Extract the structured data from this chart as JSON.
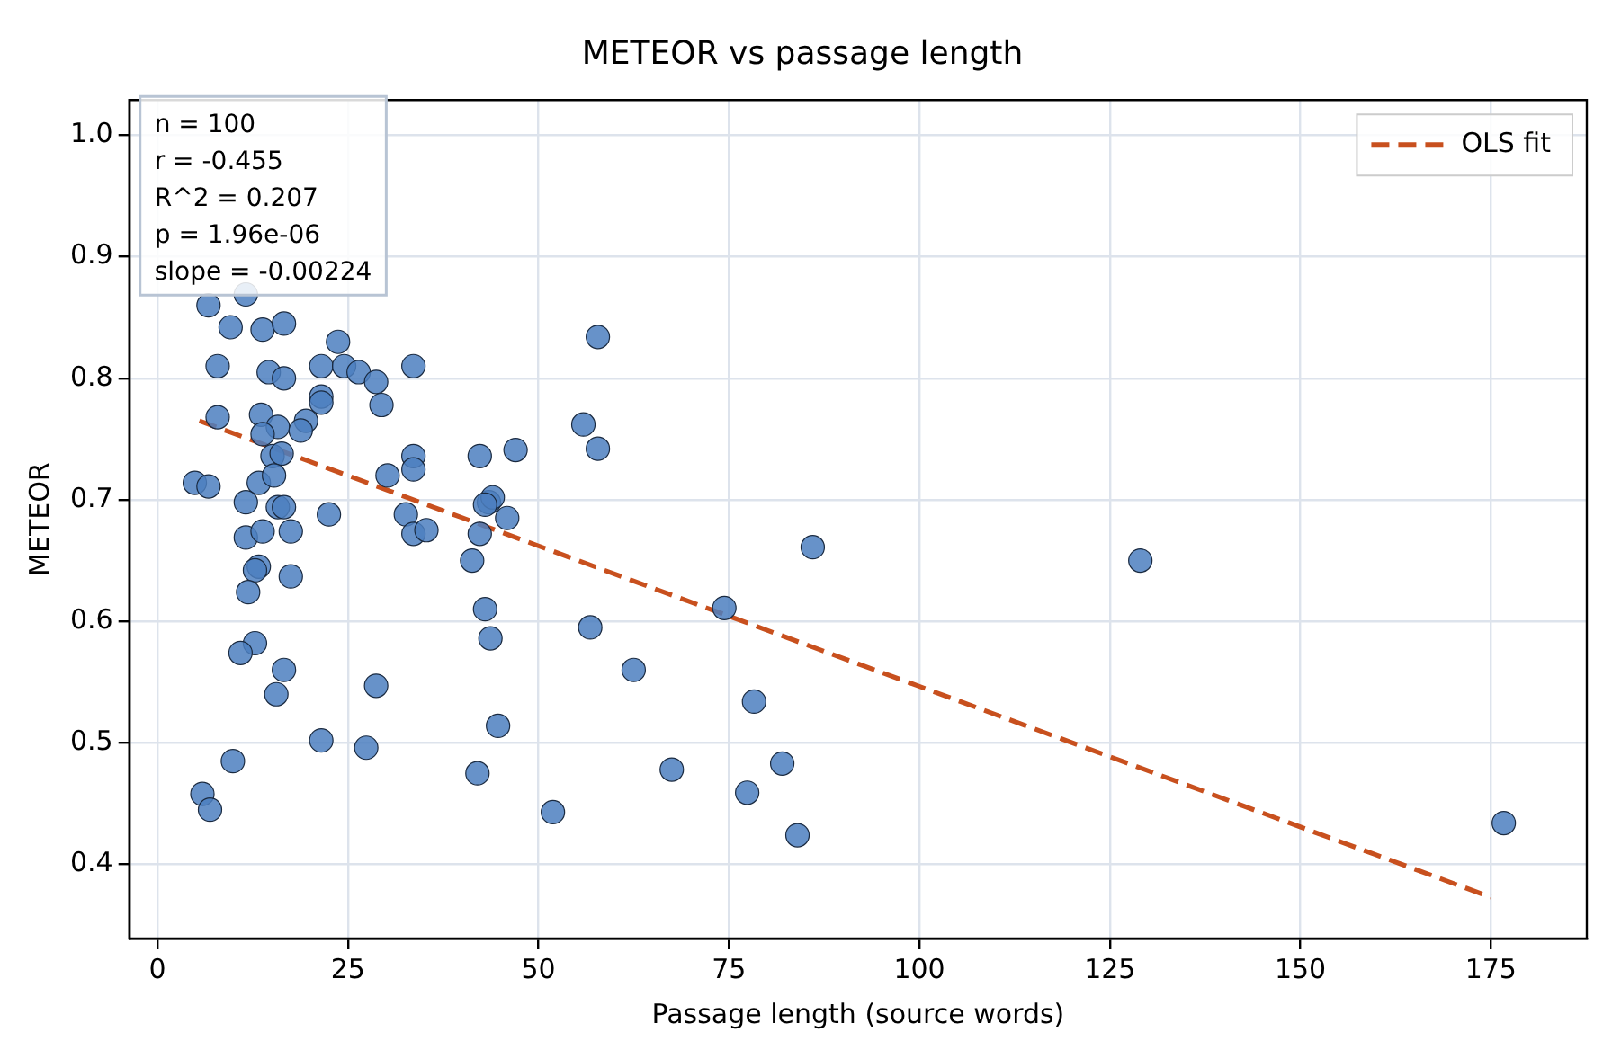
{
  "chart_data": {
    "type": "scatter",
    "title": "METEOR vs passage length",
    "xlabel": "Passage length (source words)",
    "ylabel": "METEOR",
    "xlim": [
      -3.7,
      187.6
    ],
    "ylim": [
      0.339,
      1.029
    ],
    "xticks": [
      0,
      25,
      50,
      75,
      100,
      125,
      150,
      175
    ],
    "yticks": [
      0.4,
      0.5,
      0.6,
      0.7,
      0.8,
      0.9,
      {
        "value": 1,
        "label": "1.0"
      }
    ],
    "grid": true,
    "legend": "top right",
    "marker": "circle",
    "annotations": [
      "n = 100",
      "r = -0.455",
      "R^2 = 0.207",
      "p = 1.96e-06",
      "slope = -0.00224"
    ],
    "series": [
      {
        "color": "#4c7fbf",
        "x": [
          9.6,
          13.8,
          16.6,
          6.7,
          11.6,
          7.9,
          14.6,
          16.6,
          21.5,
          23.7,
          24.5,
          26.4,
          28.7,
          29.4,
          33.6,
          7.9,
          13.6,
          15.8,
          13.8,
          19.5,
          18.8,
          21.5,
          21.5,
          15.1,
          16.3,
          30.2,
          33.6,
          33.6,
          42.3,
          4.9,
          6.7,
          13.3,
          15.3,
          11.6,
          15.8,
          16.6,
          22.5,
          11.6,
          13.8,
          17.5,
          13.3,
          12.8,
          17.5,
          11.9,
          12.8,
          10.9,
          16.6,
          15.6,
          21.5,
          27.4,
          28.7,
          9.9,
          5.9,
          6.9,
          32.6,
          33.6,
          35.3,
          43.5,
          42.3,
          41.3,
          43,
          43.7,
          44.7,
          42,
          57.8,
          55.9,
          57.8,
          47,
          44,
          43,
          45.9,
          51.9,
          56.8,
          62.5,
          67.5,
          74.4,
          78.3,
          86,
          82,
          77.4,
          84,
          129,
          176.7
        ],
        "values": [
          0.842,
          0.84,
          0.845,
          0.86,
          0.869,
          0.81,
          0.805,
          0.8,
          0.81,
          0.83,
          0.81,
          0.805,
          0.797,
          0.778,
          0.81,
          0.768,
          0.77,
          0.76,
          0.754,
          0.765,
          0.757,
          0.785,
          0.78,
          0.736,
          0.738,
          0.72,
          0.736,
          0.725,
          0.736,
          0.714,
          0.711,
          0.714,
          0.72,
          0.698,
          0.694,
          0.694,
          0.688,
          0.669,
          0.674,
          0.674,
          0.645,
          0.642,
          0.637,
          0.624,
          0.582,
          0.574,
          0.56,
          0.54,
          0.502,
          0.496,
          0.547,
          0.485,
          0.458,
          0.445,
          0.688,
          0.672,
          0.675,
          0.698,
          0.672,
          0.65,
          0.61,
          0.586,
          0.514,
          0.475,
          0.834,
          0.762,
          0.742,
          0.741,
          0.702,
          0.696,
          0.685,
          0.443,
          0.595,
          0.56,
          0.478,
          0.611,
          0.534,
          0.661,
          0.483,
          0.459,
          0.424,
          0.65,
          0.434
        ]
      },
      {
        "type": "line",
        "name": "OLS fit",
        "color": "#c8501e",
        "line_style": "dashed",
        "marker": "none",
        "x": [
          5.5,
          175
        ],
        "values": [
          0.765,
          0.373
        ]
      }
    ]
  }
}
